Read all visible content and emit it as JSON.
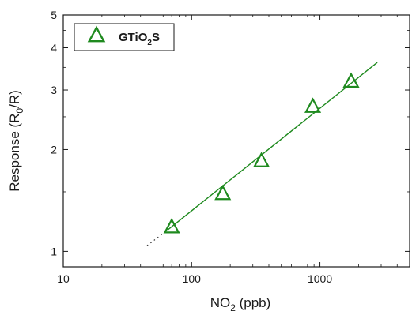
{
  "chart_data": {
    "type": "scatter",
    "title": "",
    "xlabel": {
      "base": "NO",
      "sub": "2",
      "rest": " (ppb)"
    },
    "ylabel": {
      "base": "Response (R",
      "sub": "0",
      "rest": "/R)"
    },
    "x_scale": "log",
    "y_scale": "log",
    "xlim": [
      10,
      5000
    ],
    "ylim": [
      0.9,
      5
    ],
    "x_ticks": [
      10,
      100,
      1000
    ],
    "x_tick_labels": [
      "10",
      "100",
      "1000"
    ],
    "y_ticks": [
      1,
      2,
      3,
      4,
      5
    ],
    "y_tick_labels": [
      "1",
      "2",
      "3",
      "4",
      "5"
    ],
    "grid": false,
    "legend_position": "top-left",
    "series": [
      {
        "name": {
          "base": "GTiO",
          "sub": "2",
          "rest": "S"
        },
        "marker": "open-triangle",
        "color": "#1f8a1f",
        "x": [
          70,
          175,
          350,
          880,
          1750
        ],
        "y": [
          1.18,
          1.48,
          1.85,
          2.68,
          3.18
        ]
      }
    ],
    "fit_line": {
      "color": "#1f8a1f",
      "x_solid": [
        65,
        2800
      ],
      "y_solid": [
        1.157,
        3.62
      ],
      "x_dotted": [
        45,
        65
      ],
      "y_dotted": [
        1.04,
        1.157
      ]
    }
  }
}
